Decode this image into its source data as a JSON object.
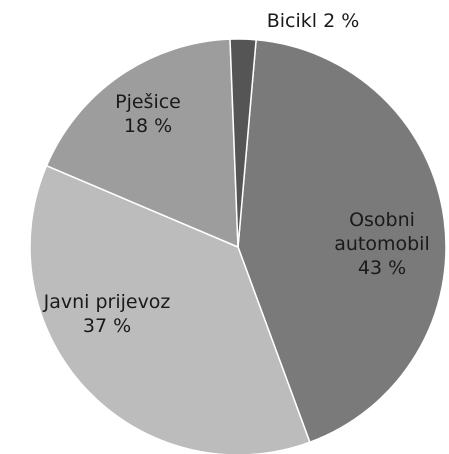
{
  "chart_data": {
    "type": "pie",
    "title": "",
    "slices": [
      {
        "label": "Osobni automobil",
        "value": 43,
        "value_label": "43 %",
        "color": "#7a7a7a"
      },
      {
        "label": "Javni prijevoz",
        "value": 37,
        "value_label": "37 %",
        "color": "#bcbcbc"
      },
      {
        "label": "Pješice",
        "value": 18,
        "value_label": "18 %",
        "color": "#9d9d9d"
      },
      {
        "label": "Bicikl",
        "value": 2,
        "value_label": "2 %",
        "color": "#555555"
      }
    ],
    "start_angle_deg": 5,
    "direction": "clockwise",
    "legend": "none",
    "slice_edge_color": "#ffffff"
  }
}
